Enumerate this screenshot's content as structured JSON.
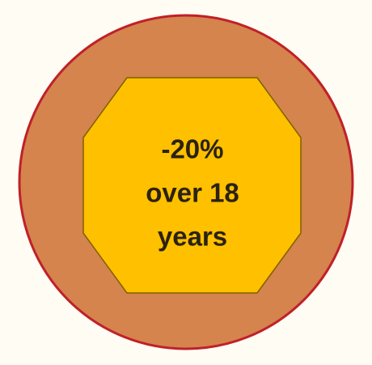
{
  "lines": [
    "-20%",
    "over 18",
    "years"
  ]
}
